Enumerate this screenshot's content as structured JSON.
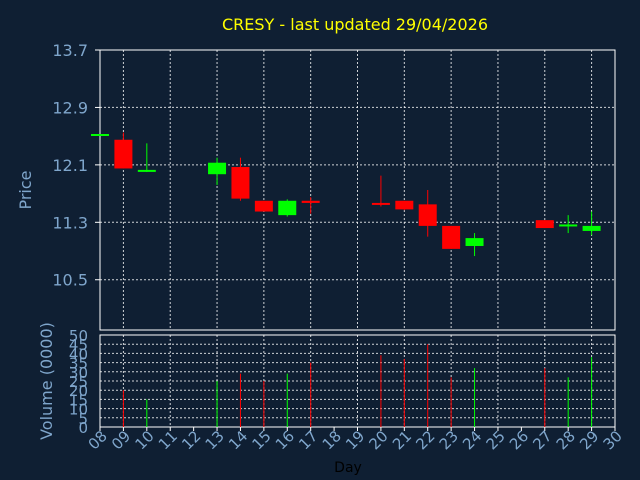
{
  "chart_data": {
    "type": "candlestick",
    "title": "CRESY - last updated 29/04/2026",
    "xlabel": "Day",
    "ylabel_price": "Price",
    "ylabel_volume": "Volume (0000)",
    "price_ylim": [
      9.8,
      13.7
    ],
    "price_ticks": [
      13.7,
      12.9,
      12.1,
      11.3,
      10.5
    ],
    "volume_ylim": [
      0,
      50
    ],
    "volume_ticks": [
      0,
      5,
      10,
      15,
      20,
      25,
      30,
      35,
      40,
      45,
      50
    ],
    "x_ticks": [
      "08",
      "09",
      "10",
      "11",
      "12",
      "13",
      "14",
      "15",
      "16",
      "17",
      "18",
      "19",
      "20",
      "21",
      "22",
      "23",
      "24",
      "25",
      "26",
      "27",
      "28",
      "29",
      "30"
    ],
    "grid": true,
    "colors": {
      "up": "#00ff00",
      "down": "#ff0000",
      "background": "#0f1f33",
      "grid": "#ffffff",
      "text": "#7fa6cc",
      "title": "#ffff00"
    },
    "candles": [
      {
        "day": "08",
        "open": 12.53,
        "high": 12.53,
        "low": 12.53,
        "close": 12.53,
        "volume": 0
      },
      {
        "day": "09",
        "open": 12.45,
        "high": 12.55,
        "low": 12.05,
        "close": 12.05,
        "volume": 20
      },
      {
        "day": "10",
        "open": 12.03,
        "high": 12.4,
        "low": 12.0,
        "close": 12.03,
        "volume": 15
      },
      {
        "day": "13",
        "open": 11.97,
        "high": 12.2,
        "low": 11.82,
        "close": 12.13,
        "volume": 25
      },
      {
        "day": "14",
        "open": 12.07,
        "high": 12.2,
        "low": 11.6,
        "close": 11.63,
        "volume": 29
      },
      {
        "day": "15",
        "open": 11.6,
        "high": 11.6,
        "low": 11.45,
        "close": 11.45,
        "volume": 25
      },
      {
        "day": "16",
        "open": 11.4,
        "high": 11.62,
        "low": 11.38,
        "close": 11.6,
        "volume": 29
      },
      {
        "day": "17",
        "open": 11.6,
        "high": 11.65,
        "low": 11.42,
        "close": 11.57,
        "volume": 35
      },
      {
        "day": "20",
        "open": 11.57,
        "high": 11.95,
        "low": 11.52,
        "close": 11.56,
        "volume": 39
      },
      {
        "day": "21",
        "open": 11.6,
        "high": 11.6,
        "low": 11.47,
        "close": 11.48,
        "volume": 37
      },
      {
        "day": "22",
        "open": 11.55,
        "high": 11.75,
        "low": 11.1,
        "close": 11.25,
        "volume": 45
      },
      {
        "day": "23",
        "open": 11.25,
        "high": 11.25,
        "low": 10.93,
        "close": 10.93,
        "volume": 27
      },
      {
        "day": "24",
        "open": 10.97,
        "high": 11.15,
        "low": 10.83,
        "close": 11.08,
        "volume": 32
      },
      {
        "day": "27",
        "open": 11.33,
        "high": 11.33,
        "low": 11.22,
        "close": 11.22,
        "volume": 32
      },
      {
        "day": "28",
        "open": 11.25,
        "high": 11.4,
        "low": 11.15,
        "close": 11.27,
        "volume": 27
      },
      {
        "day": "29",
        "open": 11.18,
        "high": 11.45,
        "low": 11.12,
        "close": 11.25,
        "volume": 38
      }
    ]
  }
}
